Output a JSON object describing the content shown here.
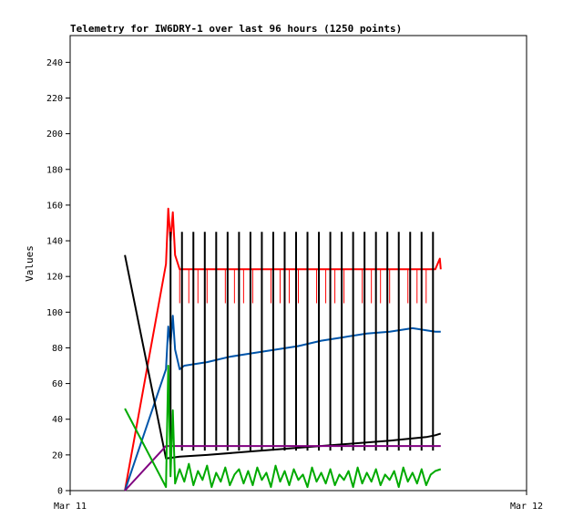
{
  "chart_data": {
    "type": "line",
    "title": "Telemetry for IW6DRY-1 over last 96 hours (1250 points)",
    "xlabel": "",
    "ylabel": "Values",
    "ylim": [
      0,
      255
    ],
    "yticks": [
      0,
      20,
      40,
      60,
      80,
      100,
      120,
      140,
      160,
      180,
      200,
      220,
      240
    ],
    "x_ticks": [
      {
        "label": "Mar 11",
        "value": 0
      },
      {
        "label": "Mar 12",
        "value": 1
      }
    ],
    "xlim": [
      0,
      1
    ],
    "grid": false,
    "legend": "none",
    "series": [
      {
        "color": "#ff0000",
        "points": [
          [
            0.12,
            0
          ],
          [
            0.21,
            127
          ],
          [
            0.215,
            158
          ],
          [
            0.22,
            140
          ],
          [
            0.225,
            156
          ],
          [
            0.23,
            132
          ],
          [
            0.24,
            124
          ],
          [
            0.3,
            124
          ],
          [
            0.4,
            124
          ],
          [
            0.5,
            124
          ],
          [
            0.6,
            124
          ],
          [
            0.7,
            124
          ],
          [
            0.8,
            124
          ],
          [
            0.81,
            130
          ],
          [
            0.812,
            124
          ]
        ],
        "dips": [
          0.24,
          0.26,
          0.28,
          0.3,
          0.32,
          0.34,
          0.36,
          0.38,
          0.4,
          0.42,
          0.44,
          0.46,
          0.48,
          0.5,
          0.52,
          0.54,
          0.56,
          0.58,
          0.6,
          0.62,
          0.64,
          0.66,
          0.68,
          0.7,
          0.72,
          0.74,
          0.76,
          0.78
        ],
        "dip_value": 105
      },
      {
        "color": "#0055aa",
        "points": [
          [
            0.12,
            0
          ],
          [
            0.21,
            68
          ],
          [
            0.215,
            92
          ],
          [
            0.22,
            82
          ],
          [
            0.225,
            98
          ],
          [
            0.23,
            79
          ],
          [
            0.24,
            68
          ],
          [
            0.25,
            70
          ],
          [
            0.3,
            72
          ],
          [
            0.35,
            75
          ],
          [
            0.4,
            77
          ],
          [
            0.45,
            79
          ],
          [
            0.5,
            81
          ],
          [
            0.55,
            84
          ],
          [
            0.6,
            86
          ],
          [
            0.65,
            88
          ],
          [
            0.7,
            89
          ],
          [
            0.75,
            91
          ],
          [
            0.8,
            89
          ],
          [
            0.812,
            89
          ]
        ]
      },
      {
        "color": "#000000",
        "points": [
          [
            0.12,
            132
          ],
          [
            0.21,
            18
          ],
          [
            0.24,
            19
          ],
          [
            0.3,
            20
          ],
          [
            0.4,
            22
          ],
          [
            0.5,
            24
          ],
          [
            0.6,
            26
          ],
          [
            0.7,
            28
          ],
          [
            0.78,
            30
          ],
          [
            0.8,
            31
          ],
          [
            0.812,
            32
          ]
        ],
        "spikes": [
          0.22,
          0.245,
          0.27,
          0.295,
          0.32,
          0.345,
          0.37,
          0.395,
          0.42,
          0.445,
          0.47,
          0.495,
          0.52,
          0.545,
          0.57,
          0.595,
          0.62,
          0.645,
          0.67,
          0.695,
          0.72,
          0.745,
          0.77,
          0.795
        ],
        "spike_value": 145
      },
      {
        "color": "#800080",
        "points": [
          [
            0.12,
            0
          ],
          [
            0.21,
            25
          ],
          [
            0.3,
            25
          ],
          [
            0.4,
            25
          ],
          [
            0.5,
            25
          ],
          [
            0.6,
            25
          ],
          [
            0.7,
            25
          ],
          [
            0.8,
            25
          ],
          [
            0.812,
            25
          ]
        ]
      },
      {
        "color": "#00aa00",
        "points": [
          [
            0.12,
            46
          ],
          [
            0.21,
            2
          ],
          [
            0.215,
            70
          ],
          [
            0.22,
            8
          ],
          [
            0.225,
            45
          ],
          [
            0.23,
            4
          ],
          [
            0.24,
            12
          ],
          [
            0.25,
            5
          ],
          [
            0.26,
            15
          ],
          [
            0.27,
            3
          ],
          [
            0.28,
            11
          ],
          [
            0.29,
            6
          ],
          [
            0.3,
            14
          ],
          [
            0.31,
            2
          ],
          [
            0.32,
            10
          ],
          [
            0.33,
            5
          ],
          [
            0.34,
            13
          ],
          [
            0.35,
            3
          ],
          [
            0.36,
            9
          ],
          [
            0.37,
            12
          ],
          [
            0.38,
            4
          ],
          [
            0.39,
            11
          ],
          [
            0.4,
            3
          ],
          [
            0.41,
            13
          ],
          [
            0.42,
            6
          ],
          [
            0.43,
            10
          ],
          [
            0.44,
            2
          ],
          [
            0.45,
            14
          ],
          [
            0.46,
            5
          ],
          [
            0.47,
            11
          ],
          [
            0.48,
            3
          ],
          [
            0.49,
            12
          ],
          [
            0.5,
            6
          ],
          [
            0.51,
            9
          ],
          [
            0.52,
            2
          ],
          [
            0.53,
            13
          ],
          [
            0.54,
            5
          ],
          [
            0.55,
            10
          ],
          [
            0.56,
            4
          ],
          [
            0.57,
            12
          ],
          [
            0.58,
            3
          ],
          [
            0.59,
            9
          ],
          [
            0.6,
            6
          ],
          [
            0.61,
            11
          ],
          [
            0.62,
            2
          ],
          [
            0.63,
            13
          ],
          [
            0.64,
            4
          ],
          [
            0.65,
            10
          ],
          [
            0.66,
            5
          ],
          [
            0.67,
            12
          ],
          [
            0.68,
            3
          ],
          [
            0.69,
            9
          ],
          [
            0.7,
            6
          ],
          [
            0.71,
            11
          ],
          [
            0.72,
            2
          ],
          [
            0.73,
            13
          ],
          [
            0.74,
            5
          ],
          [
            0.75,
            10
          ],
          [
            0.76,
            4
          ],
          [
            0.77,
            12
          ],
          [
            0.78,
            3
          ],
          [
            0.79,
            9
          ],
          [
            0.8,
            11
          ],
          [
            0.812,
            12
          ]
        ]
      }
    ]
  }
}
